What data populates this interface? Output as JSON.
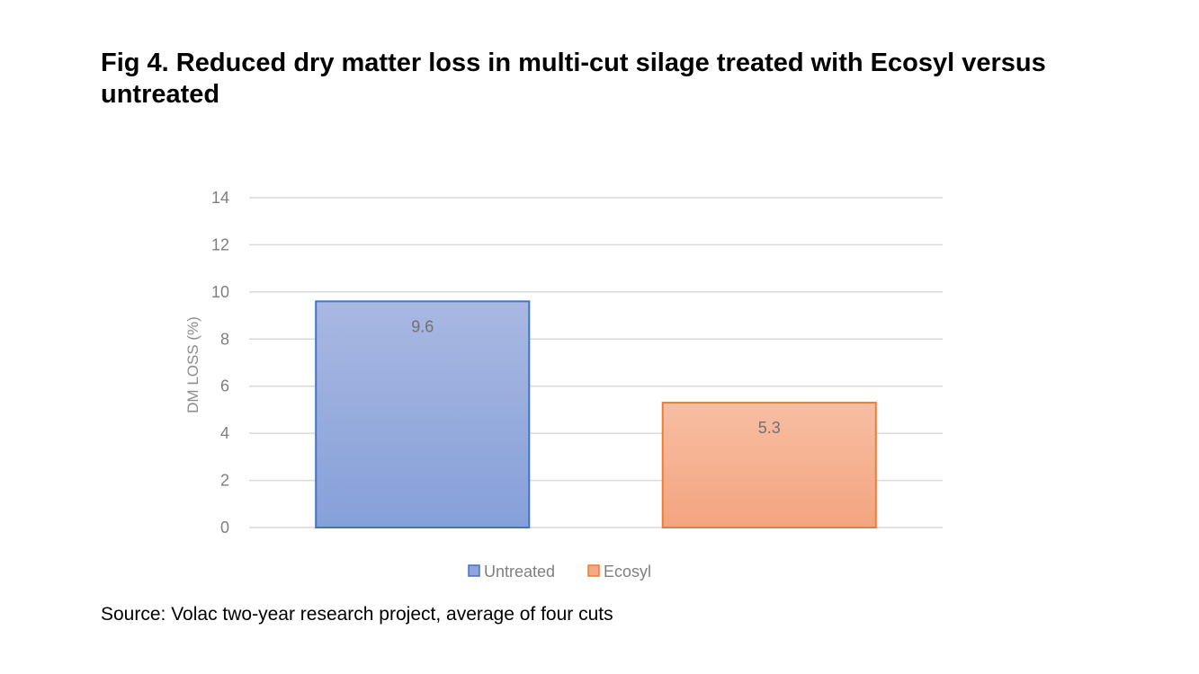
{
  "title": "Fig 4. Reduced dry matter loss in multi-cut silage treated with Ecosyl versus untreated",
  "source": "Source: Volac two-year research project, average of four cuts",
  "chart_data": {
    "type": "bar",
    "categories": [
      "Untreated",
      "Ecosyl"
    ],
    "values": [
      9.6,
      5.3
    ],
    "data_labels": [
      "9.6",
      "5.3"
    ],
    "colors": [
      "#8ea4db",
      "#f5aa85"
    ],
    "border_colors": [
      "#4472c4",
      "#ed7d31"
    ],
    "title": "",
    "xlabel": "",
    "ylabel": "DM LOSS (%)",
    "ylim": [
      0,
      14
    ],
    "yticks": [
      0,
      2,
      4,
      6,
      8,
      10,
      12,
      14
    ],
    "grid": true,
    "legend": {
      "position": "bottom",
      "entries": [
        "Untreated",
        "Ecosyl"
      ]
    }
  }
}
